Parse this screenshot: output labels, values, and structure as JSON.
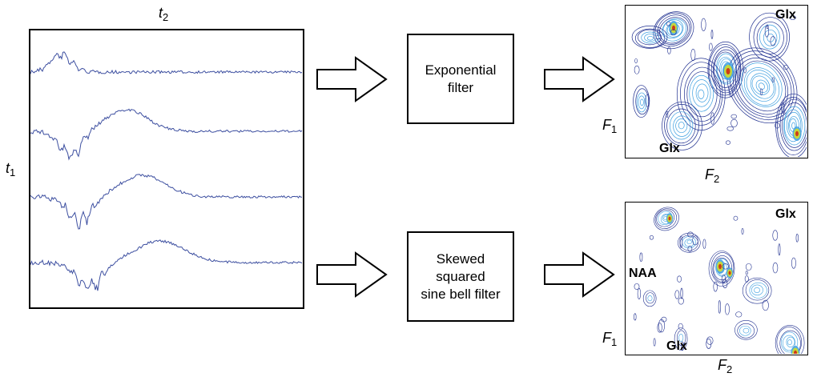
{
  "fid": {
    "time_axis_label": "t",
    "time_axis_sub": "2",
    "increment_axis_label": "t",
    "increment_axis_sub": "1",
    "traces": 4
  },
  "pipelines": [
    {
      "filter_label": "Exponential\nfilter",
      "spectrum": {
        "f1_label": "F",
        "f1_sub": "1",
        "f2_label": "F",
        "f2_sub": "2",
        "peaks": {
          "glx_top": "Glx",
          "glx_bottom": "Glx"
        }
      }
    },
    {
      "filter_label": "Skewed\nsquared\nsine bell filter",
      "spectrum": {
        "f1_label": "F",
        "f1_sub": "1",
        "f2_label": "F",
        "f2_sub": "2",
        "peaks": {
          "glx_top": "Glx",
          "naa": "NAA",
          "glx_bottom": "Glx"
        }
      }
    }
  ],
  "colors": {
    "trace": "#3d4fa0",
    "contour_outer": "#1f2f8f",
    "contour_mid": "#3fa0e0",
    "contour_hot": "#d8e020",
    "contour_peak": "#d02010"
  }
}
